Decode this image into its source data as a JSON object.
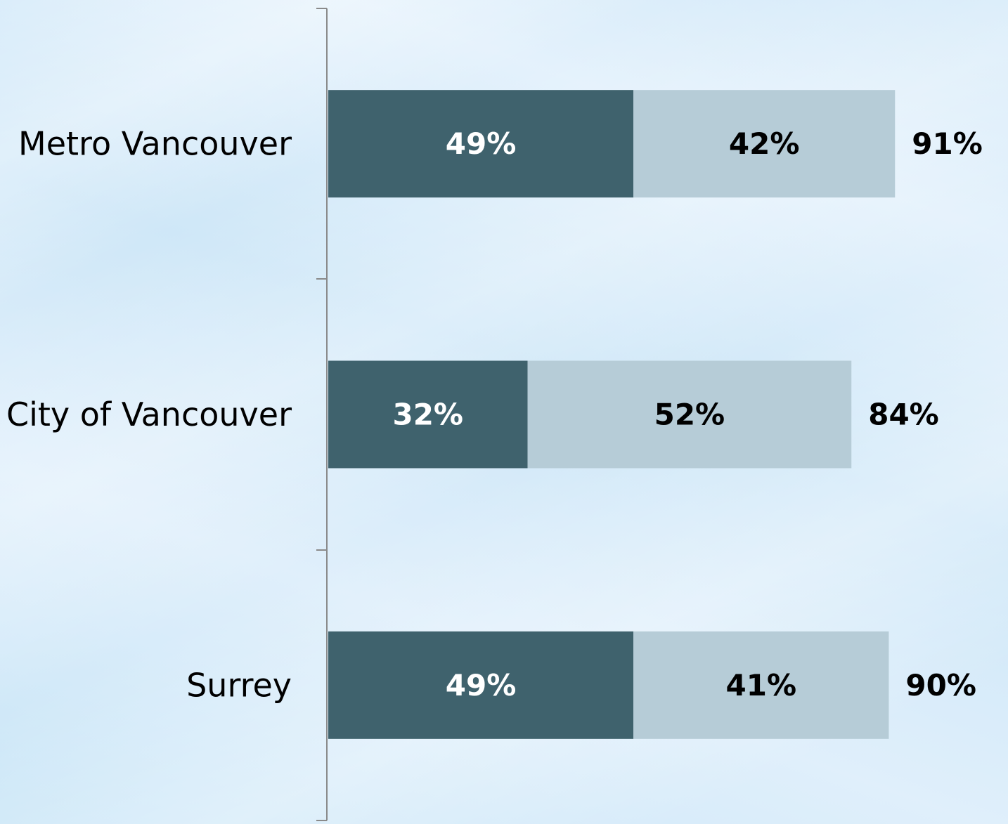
{
  "chart_data": {
    "type": "stacked-barh",
    "categories": [
      "Metro Vancouver",
      "City of Vancouver",
      "Surrey"
    ],
    "series": [
      {
        "color": "#3f626d",
        "values": [
          49,
          32,
          49
        ],
        "value_labels": [
          "49%",
          "32%",
          "49%"
        ],
        "label_color": "#ffffff"
      },
      {
        "color": "#b6ccd7",
        "values": [
          42,
          52,
          41
        ],
        "value_labels": [
          "42%",
          "52%",
          "41%"
        ],
        "label_color": "#000000"
      }
    ],
    "totals": [
      91,
      84,
      90
    ],
    "total_labels": [
      "91%",
      "84%",
      "90%"
    ],
    "xlim": [
      0,
      100
    ]
  }
}
